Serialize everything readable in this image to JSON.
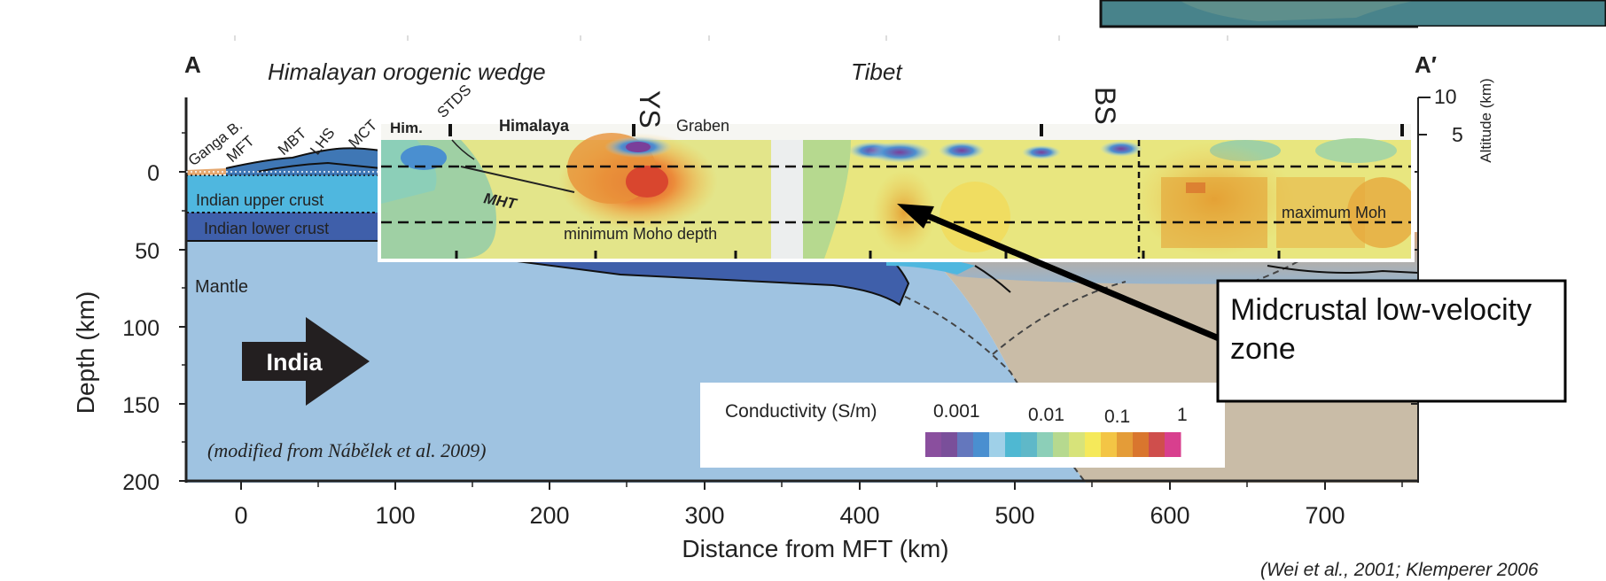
{
  "figure": {
    "corner_left": "A",
    "corner_right": "A′",
    "title_wedge": "Himalayan orogenic wedge",
    "title_tibet": "Tibet",
    "y_axis_label": "Depth (km)",
    "x_axis_label": "Distance from MFT (km)",
    "right_axis_label": "Altitude (km)",
    "y_ticks": [
      "0",
      "50",
      "100",
      "150",
      "200"
    ],
    "x_ticks": [
      "0",
      "100",
      "200",
      "300",
      "400",
      "500",
      "600",
      "700"
    ],
    "right_ticks": [
      "10",
      "5"
    ],
    "credit_left": "(modified from Nábělek et al. 2009)",
    "credit_right": "(Wei et al., 2001; Klemperer 2006"
  },
  "cross_section": {
    "faults": [
      "Ganga B.",
      "MFT",
      "MBT",
      "LHS",
      "MCT",
      "STDS"
    ],
    "layers": [
      "Indian upper crust",
      "Indian lower crust",
      "Mantle"
    ],
    "plate_label": "India",
    "colors": {
      "mantle": "#9fc3e1",
      "upper_crust": "#4fb7df",
      "lower_crust": "#3f5faa",
      "tibet_mantle": "#c9bca7",
      "plate_arrow": "#231f20"
    }
  },
  "inset": {
    "top_labels": [
      "Him.",
      "Himalaya",
      "Graben",
      "YS",
      "BS"
    ],
    "fault_label": "MHT",
    "min_moho": "minimum Moho depth",
    "max_moho": "maximum Moh"
  },
  "legend": {
    "title": "Conductivity (S/m)",
    "ticks": [
      "0.001",
      "0.01",
      "0.1",
      "1"
    ],
    "colors": [
      "#8a4f9e",
      "#7a4f9a",
      "#6477bd",
      "#4a8fd0",
      "#9fd0e8",
      "#4fb8d2",
      "#5fb8c8",
      "#8ccfb8",
      "#b6d98f",
      "#d7e37a",
      "#f5e95a",
      "#f3c545",
      "#e49c38",
      "#d9762e",
      "#cf4e4c",
      "#d83f8e"
    ]
  },
  "annotation": {
    "callout": "Midcrustal low-velocity zone"
  }
}
